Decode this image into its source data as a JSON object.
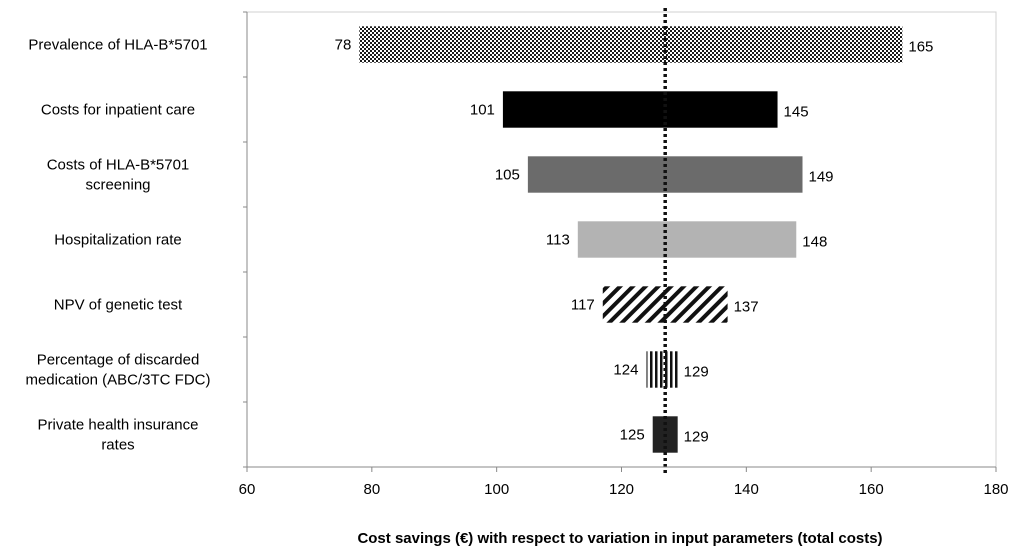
{
  "chart_data": {
    "type": "bar",
    "orientation": "horizontal",
    "subtype": "tornado",
    "title": "",
    "xlabel": "Cost savings (€) with respect to variation in input parameters (total costs)",
    "ylabel": "",
    "xlim": [
      60,
      180
    ],
    "xticks": [
      60,
      80,
      100,
      120,
      140,
      160,
      180
    ],
    "base_value": 127,
    "grid": false,
    "legend": "none",
    "bars": [
      {
        "label": [
          "Prevalence of HLA-B*5701"
        ],
        "low": 78,
        "high": 165,
        "fill": "checker"
      },
      {
        "label": [
          "Costs for inpatient care"
        ],
        "low": 101,
        "high": 145,
        "fill": "#000000"
      },
      {
        "label": [
          "Costs of HLA-B*5701",
          "screening"
        ],
        "low": 105,
        "high": 149,
        "fill": "#6b6b6b"
      },
      {
        "label": [
          "Hospitalization rate"
        ],
        "low": 113,
        "high": 148,
        "fill": "#b3b3b3"
      },
      {
        "label": [
          "NPV of genetic test"
        ],
        "low": 117,
        "high": 137,
        "fill": "diagonal"
      },
      {
        "label": [
          "Percentage of discarded",
          "medication (ABC/3TC FDC)"
        ],
        "low": 124,
        "high": 129,
        "fill": "vertical"
      },
      {
        "label": [
          "Private health insurance",
          "rates"
        ],
        "low": 125,
        "high": 129,
        "fill": "#222222"
      }
    ]
  }
}
